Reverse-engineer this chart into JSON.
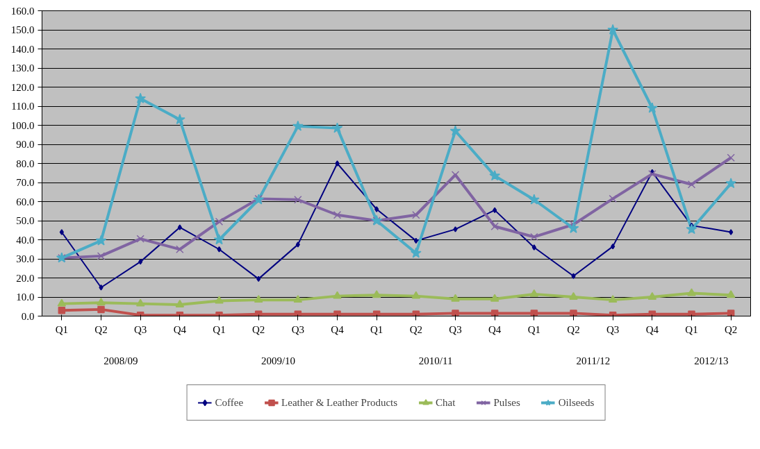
{
  "chart_data": {
    "type": "line",
    "categories": [
      "Q1",
      "Q2",
      "Q3",
      "Q4",
      "Q1",
      "Q2",
      "Q3",
      "Q4",
      "Q1",
      "Q2",
      "Q3",
      "Q4",
      "Q1",
      "Q2",
      "Q3",
      "Q4",
      "Q1",
      "Q2"
    ],
    "annotations": [
      "2008/09",
      "2009/10",
      "2010/11",
      "2011/12",
      "2012/13"
    ],
    "series": [
      {
        "name": "Coffee",
        "color": "#000080",
        "marker": "diamond",
        "values": [
          44,
          15,
          28.5,
          46.5,
          35,
          19.5,
          37.5,
          80,
          56,
          39.5,
          45.5,
          55.5,
          36,
          21,
          36.5,
          75.5,
          47.5,
          44
        ]
      },
      {
        "name": "Leather & Leather Products",
        "color": "#c0504d",
        "marker": "square",
        "values": [
          3,
          3.5,
          0.5,
          0.5,
          0.5,
          1,
          1,
          1,
          1,
          1,
          1.5,
          1.5,
          1.5,
          1.5,
          0.5,
          1,
          1,
          1.5
        ]
      },
      {
        "name": "Chat",
        "color": "#9bbb59",
        "marker": "triangle",
        "values": [
          6.5,
          7,
          6.5,
          6,
          8,
          8.5,
          8.5,
          10.5,
          11,
          10.5,
          9,
          9,
          11.5,
          10,
          8.5,
          10,
          12,
          11
        ]
      },
      {
        "name": "Pulses",
        "color": "#8064a2",
        "marker": "cross",
        "values": [
          30.5,
          31.5,
          40.5,
          35,
          49.5,
          61.5,
          61,
          53,
          50,
          53,
          74,
          47,
          41.5,
          48,
          61.5,
          74.5,
          69,
          83
        ]
      },
      {
        "name": "Oilseeds",
        "color": "#4bacc6",
        "marker": "star",
        "values": [
          30.5,
          39.5,
          114,
          103,
          40,
          61,
          99.5,
          98.5,
          50,
          33,
          97,
          73.5,
          61,
          46,
          150,
          109,
          45.5,
          69.5
        ]
      }
    ],
    "ylim": [
      0,
      160
    ],
    "yticks": [
      {
        "value": 0,
        "label": "0.0"
      },
      {
        "value": 10,
        "label": "10.0"
      },
      {
        "value": 20,
        "label": "20.0"
      },
      {
        "value": 30,
        "label": "30.0"
      },
      {
        "value": 40,
        "label": "40.0"
      },
      {
        "value": 50,
        "label": "50.0"
      },
      {
        "value": 60,
        "label": "60.0"
      },
      {
        "value": 70,
        "label": "70.0"
      },
      {
        "value": 80,
        "label": "80.0"
      },
      {
        "value": 90,
        "label": "90.0"
      },
      {
        "value": 100,
        "label": "100.0"
      },
      {
        "value": 110,
        "label": "110.0"
      },
      {
        "value": 120,
        "label": "120.0"
      },
      {
        "value": 130,
        "label": "130.0"
      },
      {
        "value": 140,
        "label": "140.0"
      },
      {
        "value": 150,
        "label": "150.0"
      },
      {
        "value": 160,
        "label": "160.0"
      }
    ],
    "grid": "y",
    "legend": "bottom",
    "line_style": "solid"
  }
}
